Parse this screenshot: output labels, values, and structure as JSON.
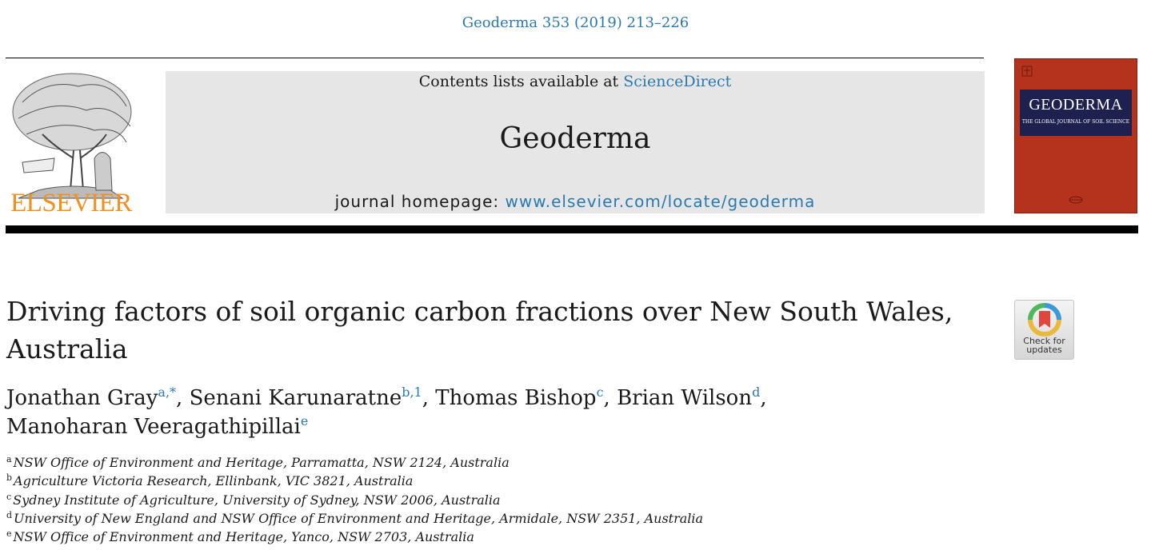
{
  "header": {
    "citation": "Geoderma 353 (2019) 213–226",
    "contents_prefix": "Contents lists available at ",
    "contents_link": "ScienceDirect",
    "journal": "Geoderma",
    "homepage_prefix": "journal homepage: ",
    "homepage_link": "www.elsevier.com/locate/geoderma",
    "publisher": "ELSEVIER",
    "cover_title": "GEODERMA",
    "cover_subtitle": "THE GLOBAL JOURNAL OF SOIL SCIENCE"
  },
  "article": {
    "title": "Driving factors of soil organic carbon fractions over New South Wales, Australia",
    "check_updates": "Check for updates",
    "authors": [
      {
        "name": "Jonathan Gray",
        "sup": "a,*",
        "sep": ", "
      },
      {
        "name": "Senani Karunaratne",
        "sup": "b,1",
        "sep": ", "
      },
      {
        "name": "Thomas Bishop",
        "sup": "c",
        "sep": ", "
      },
      {
        "name": "Brian Wilson",
        "sup": "d",
        "sep": ","
      },
      {
        "name": "Manoharan Veeragathipillai",
        "sup": "e",
        "sep": ""
      }
    ],
    "affiliations": [
      {
        "key": "a",
        "text": "NSW Office of Environment and Heritage, Parramatta, NSW 2124, Australia"
      },
      {
        "key": "b",
        "text": "Agriculture Victoria Research, Ellinbank, VIC 3821, Australia"
      },
      {
        "key": "c",
        "text": "Sydney Institute of Agriculture, University of Sydney, NSW 2006, Australia"
      },
      {
        "key": "d",
        "text": "University of New England and NSW Office of Environment and Heritage, Armidale, NSW 2351, Australia"
      },
      {
        "key": "e",
        "text": "NSW Office of Environment and Heritage, Yanco, NSW 2703, Australia"
      }
    ]
  },
  "colors": {
    "link": "#2a7ab0",
    "elsevier_orange": "#f0901e",
    "cover_red": "#b5321c",
    "cover_band": "#1e2150"
  }
}
